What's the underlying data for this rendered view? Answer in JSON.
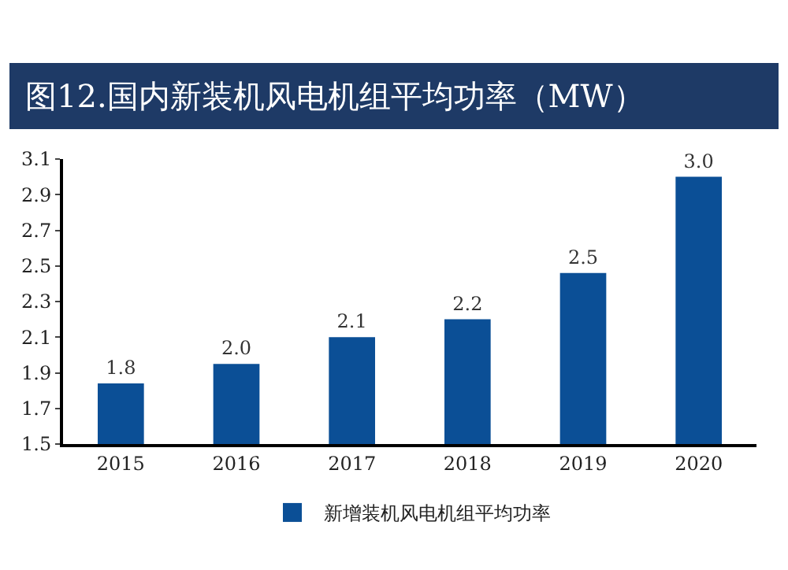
{
  "chart_data": {
    "type": "bar",
    "title": "图12.国内新装机风电机组平均功率（MW）",
    "categories": [
      "2015",
      "2016",
      "2017",
      "2018",
      "2019",
      "2020"
    ],
    "series": [
      {
        "name": "新增装机风电机组平均功率",
        "color": "#0b4f96",
        "values": [
          1.84,
          1.95,
          2.1,
          2.2,
          2.46,
          3.0
        ],
        "value_labels": [
          "1.8",
          "2.0",
          "2.1",
          "2.2",
          "2.5",
          "3.0"
        ]
      }
    ],
    "ylim": [
      1.5,
      3.1
    ],
    "yticks": [
      1.5,
      1.7,
      1.9,
      2.1,
      2.3,
      2.5,
      2.7,
      2.9,
      3.1
    ],
    "grid": false,
    "legend": "bottom"
  }
}
